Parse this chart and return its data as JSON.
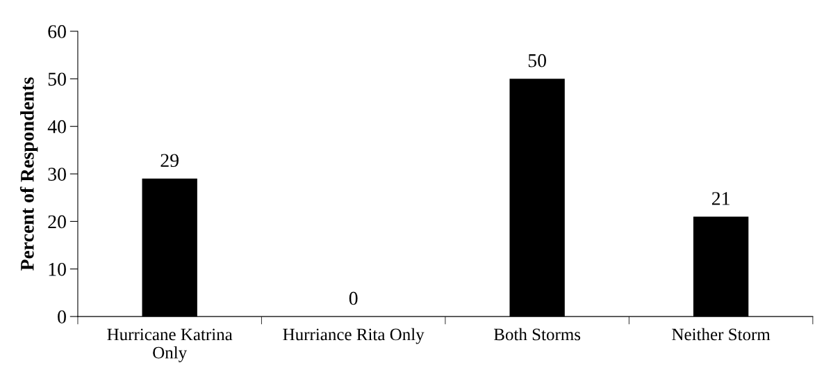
{
  "chart_data": {
    "type": "bar",
    "ylabel": "Percent of Respondents",
    "categories": [
      "Hurricane Katrina\nOnly",
      "Hurriance Rita Only",
      "Both Storms",
      "Neither Storm"
    ],
    "values": [
      29,
      0,
      50,
      21
    ],
    "color": "#000000",
    "ylim": [
      0,
      60
    ],
    "yticks": [
      0,
      10,
      20,
      30,
      40,
      50,
      60
    ],
    "data_labels": true,
    "grid": false,
    "legend": false
  }
}
